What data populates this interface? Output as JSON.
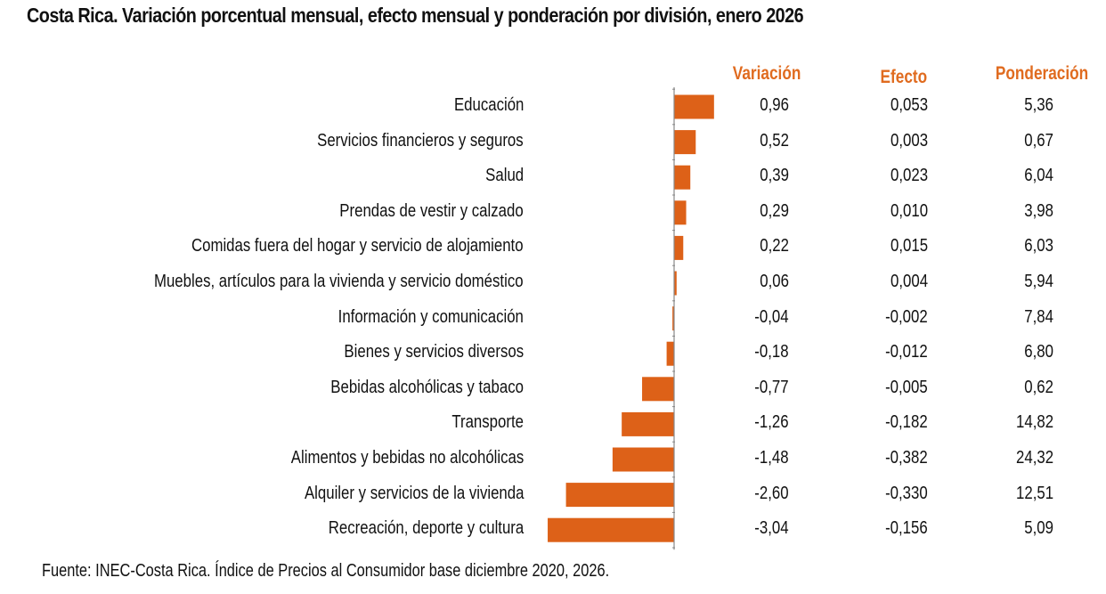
{
  "title": "Costa Rica. Variación porcentual mensual, efecto mensual y ponderación por división, enero 2026",
  "footer": "Fuente: INEC-Costa Rica. Índice de Precios al Consumidor base diciembre 2020, 2026.",
  "colors": {
    "bar": "#dd6118",
    "header": "#e06b1f",
    "axis": "#888888",
    "text": "#111111"
  },
  "headers": {
    "variacion": "Variación",
    "efecto": "Efecto",
    "ponderacion": "Ponderación"
  },
  "chart_data": {
    "type": "bar",
    "orientation": "horizontal",
    "title": "Costa Rica. Variación porcentual mensual, efecto mensual y ponderación por división, enero 2026",
    "xlabel": "",
    "ylabel": "",
    "grid": false,
    "legend": "none",
    "categories": [
      "Educación",
      "Servicios financieros y seguros",
      "Salud",
      "Prendas de vestir y calzado",
      "Comidas fuera del hogar y servicio de alojamiento",
      "Muebles, artículos para la vivienda y servicio doméstico",
      "Información y comunicación",
      "Bienes y servicios diversos",
      "Bebidas alcohólicas y tabaco",
      "Transporte",
      "Alimentos y bebidas no alcohólicas",
      "Alquiler y servicios de la vivienda",
      "Recreación, deporte y cultura"
    ],
    "series": [
      {
        "name": "Variación",
        "values": [
          0.96,
          0.52,
          0.39,
          0.29,
          0.22,
          0.06,
          -0.04,
          -0.18,
          -0.77,
          -1.26,
          -1.48,
          -2.6,
          -3.04
        ]
      }
    ],
    "table": {
      "variacion_labels": [
        "0,96",
        "0,52",
        "0,39",
        "0,29",
        "0,22",
        "0,06",
        "-0,04",
        "-0,18",
        "-0,77",
        "-1,26",
        "-1,48",
        "-2,60",
        "-3,04"
      ],
      "efecto_labels": [
        "0,053",
        "0,003",
        "0,023",
        "0,010",
        "0,015",
        "0,004",
        "-0,002",
        "-0,012",
        "-0,005",
        "-0,182",
        "-0,382",
        "-0,330",
        "-0,156"
      ],
      "ponderacion_labels": [
        "5,36",
        "0,67",
        "6,04",
        "3,98",
        "6,03",
        "5,94",
        "7,84",
        "6,80",
        "0,62",
        "14,82",
        "24,32",
        "12,51",
        "5,09"
      ]
    }
  }
}
